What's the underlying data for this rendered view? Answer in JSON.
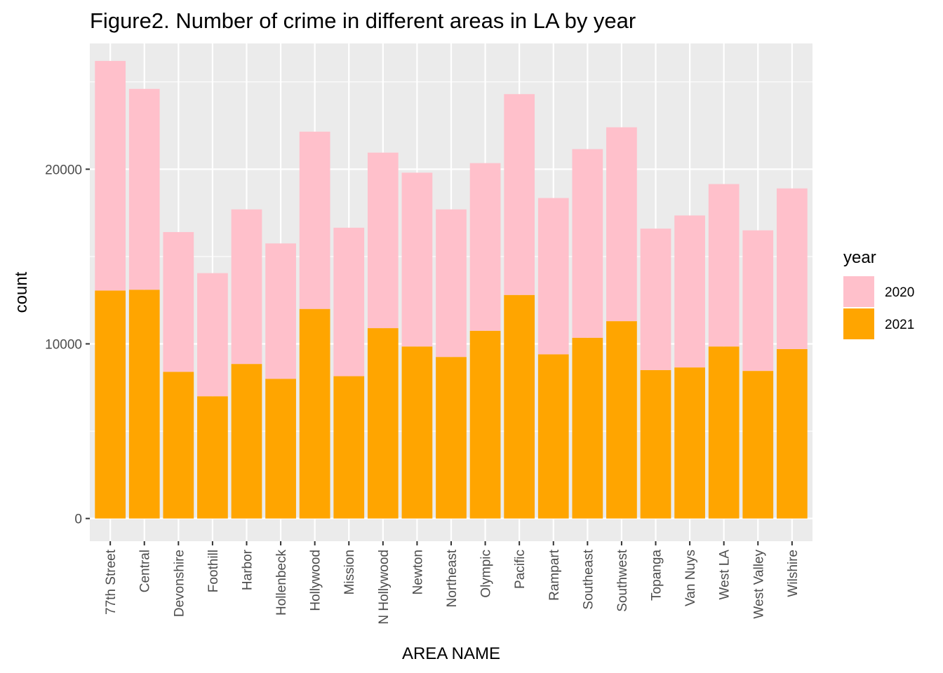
{
  "chart_data": {
    "type": "bar",
    "stacked": true,
    "title": "Figure2. Number of crime in different areas in LA by year",
    "xlabel": "AREA NAME",
    "ylabel": "count",
    "ylim": [
      -1300,
      27200
    ],
    "yticks": [
      0,
      10000,
      20000
    ],
    "ytick_labels": [
      "0",
      "10000",
      "20000"
    ],
    "grid": true,
    "legend_position": "right",
    "legend_title": "year",
    "categories": [
      "77th Street",
      "Central",
      "Devonshire",
      "Foothill",
      "Harbor",
      "Hollenbeck",
      "Hollywood",
      "Mission",
      "N Hollywood",
      "Newton",
      "Northeast",
      "Olympic",
      "Pacific",
      "Rampart",
      "Southeast",
      "Southwest",
      "Topanga",
      "Van Nuys",
      "West LA",
      "West Valley",
      "Wilshire"
    ],
    "series": [
      {
        "name": "2021",
        "color": "#FFA500",
        "values": [
          13050,
          13100,
          8400,
          7000,
          8850,
          8000,
          12000,
          8150,
          10900,
          9850,
          9250,
          10750,
          12800,
          9400,
          10350,
          11300,
          8500,
          8650,
          9850,
          8450,
          9700
        ]
      },
      {
        "name": "2020",
        "color": "#FFC0CB",
        "values": [
          13150,
          11500,
          8000,
          7050,
          8850,
          7750,
          10150,
          8500,
          10050,
          9950,
          8450,
          9600,
          11500,
          8950,
          10800,
          11100,
          8100,
          8700,
          9300,
          8050,
          9200
        ]
      }
    ],
    "panel_background": "#EBEBEB",
    "grid_color": "#FFFFFF"
  }
}
